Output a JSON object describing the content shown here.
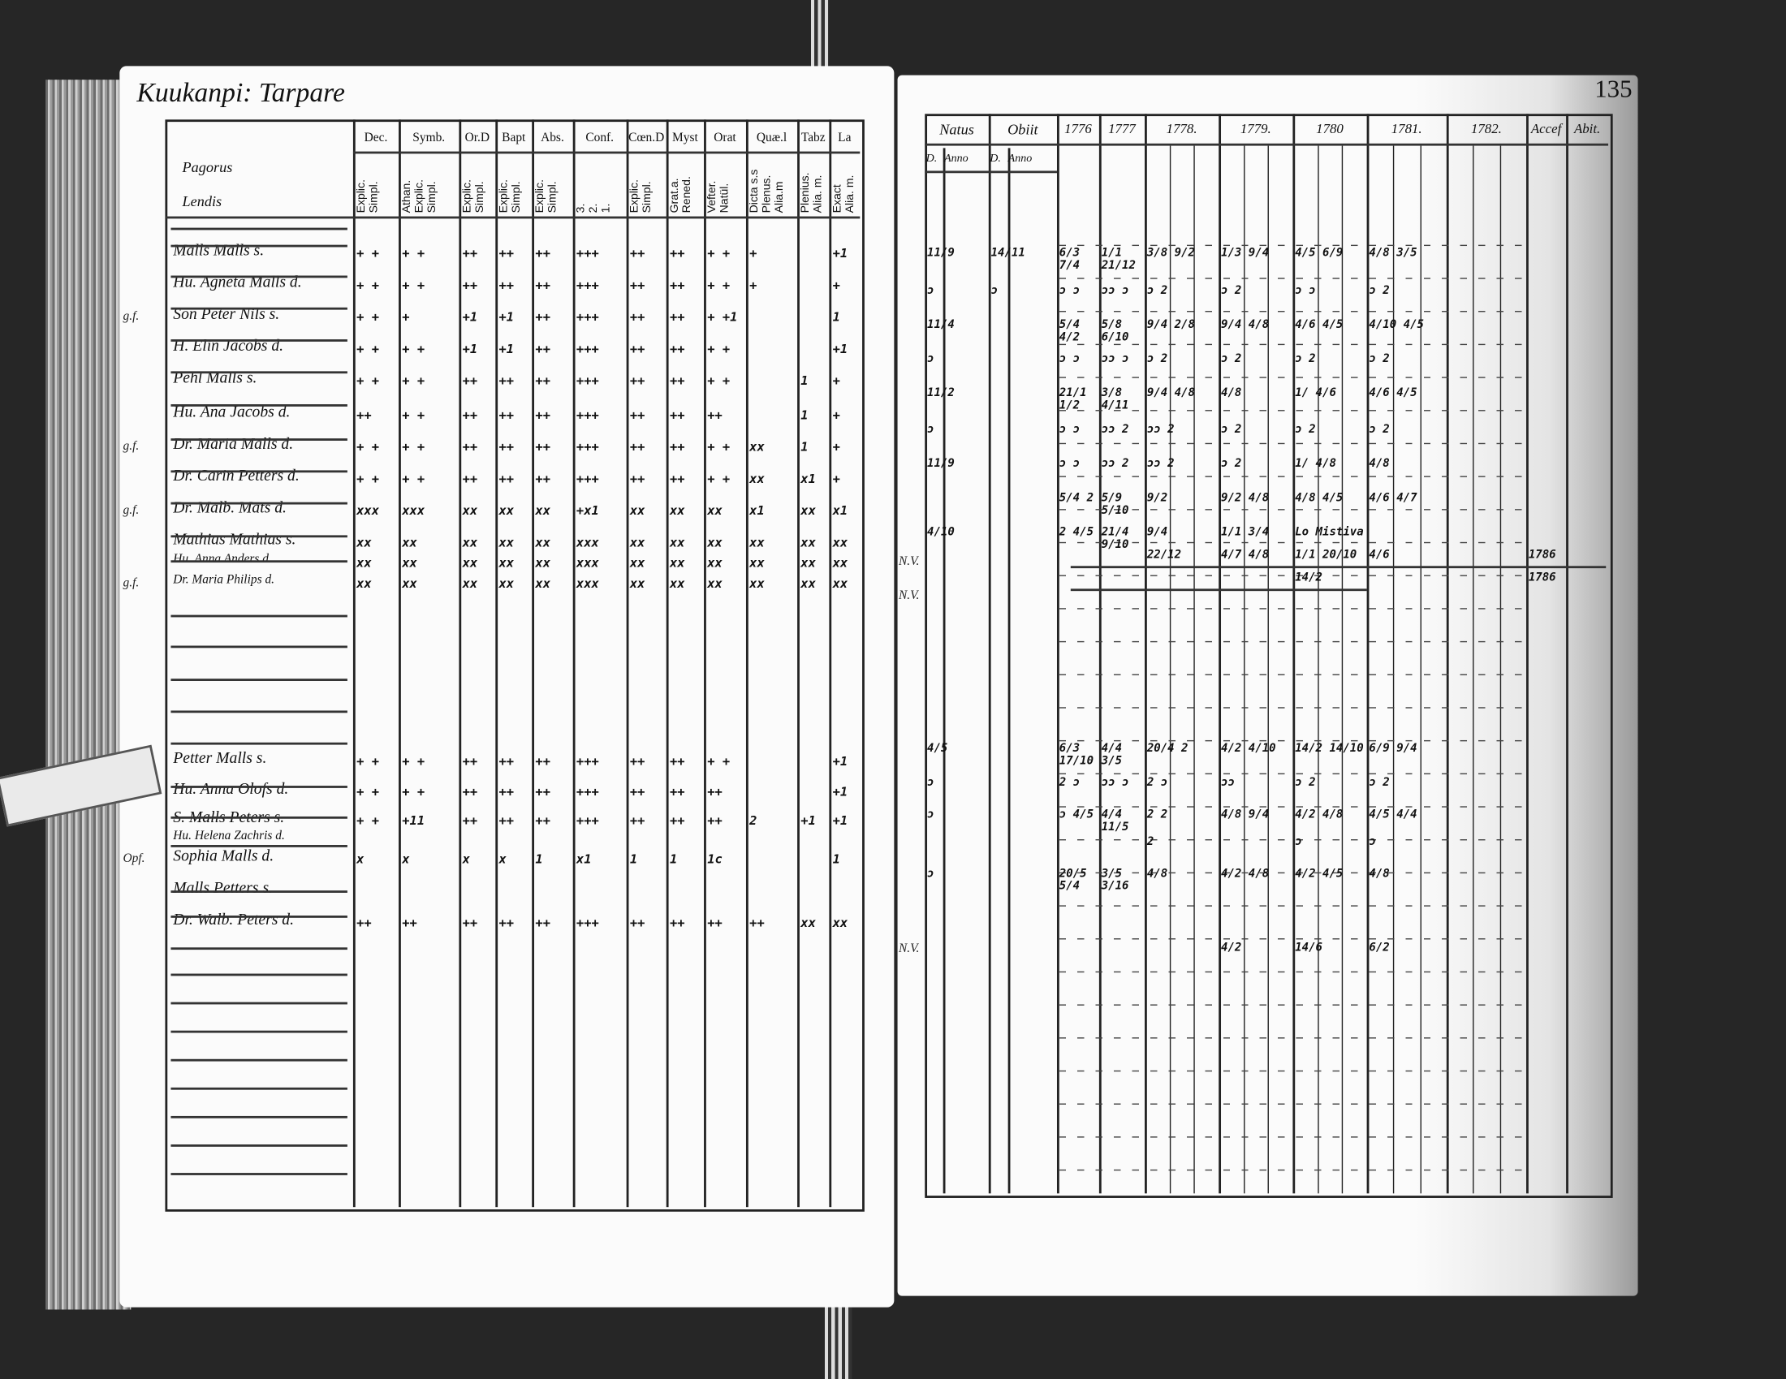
{
  "left_page": {
    "title": "Kuukanpi: Tarpare",
    "name_header": [
      "Pagorus",
      "Lendis"
    ],
    "columns": [
      {
        "head": "Dec.",
        "sub": "Explic.\nSimpl."
      },
      {
        "head": "Symb.",
        "sub": "Athan.\nExplic.\nSimpl."
      },
      {
        "head": "Or.D",
        "sub": "Explic.\nSimpl."
      },
      {
        "head": "Bapt",
        "sub": "Explic.\nSimpl."
      },
      {
        "head": "Abs.",
        "sub": "Explic.\nSimpl."
      },
      {
        "head": "Conf.",
        "sub": "3.\n2.\n1."
      },
      {
        "head": "Cœn.D",
        "sub": "Explic.\nSimpl."
      },
      {
        "head": "Myst",
        "sub": "Grat.a.\nRened."
      },
      {
        "head": "Orat",
        "sub": "Vefter.\nNatül."
      },
      {
        "head": "Quæ.l",
        "sub": "Dicta s.s\nPlenus.\nAlia.m"
      },
      {
        "head": "Tabz",
        "sub": "Plenius.\nAlia. m."
      },
      {
        "head": "La",
        "sub": "Exact\nAlia. m."
      }
    ],
    "rows": [
      {
        "name": "Malls Malls s.",
        "margin": "",
        "marks": [
          "+ +",
          "+ +",
          "++",
          "++",
          "++",
          "+++",
          "++",
          "++",
          "+ +",
          "+",
          "",
          "+1"
        ]
      },
      {
        "name": "Hu. Agneta Malls d.",
        "margin": "",
        "marks": [
          "+ +",
          "+ +",
          "++",
          "++",
          "++",
          "+++",
          "++",
          "++",
          "+ +",
          "+",
          "",
          "+"
        ]
      },
      {
        "name": "Son Peter Nils s.",
        "margin": "g.f.",
        "marks": [
          "+ +",
          "+",
          "+1",
          "+1",
          "++",
          "+++",
          "++",
          "++",
          "+ +1",
          "",
          "",
          "1"
        ]
      },
      {
        "name": "H. Elin Jacobs d.",
        "margin": "",
        "marks": [
          "+ +",
          "+ +",
          "+1",
          "+1",
          "++",
          "+++",
          "++",
          "++",
          "+ +",
          "",
          "",
          "+1"
        ]
      },
      {
        "name": "Pehl Malls s.",
        "margin": "",
        "marks": [
          "+ +",
          "+ +",
          "++",
          "++",
          "++",
          "+++",
          "++",
          "++",
          "+ +",
          "",
          "1",
          "+"
        ]
      },
      {
        "name": "Hu. Ana Jacobs d.",
        "margin": "",
        "marks": [
          "++",
          "+ +",
          "++",
          "++",
          "++",
          "+++",
          "++",
          "++",
          "++",
          "",
          "1",
          "+"
        ]
      },
      {
        "name": "Dr. Maria Malls d.",
        "margin": "g.f.",
        "marks": [
          "+ +",
          "+ +",
          "++",
          "++",
          "++",
          "+++",
          "++",
          "++",
          "+ +",
          "xx",
          "1",
          "+"
        ]
      },
      {
        "name": "Dr. Carin Petters d.",
        "margin": "",
        "marks": [
          "+ +",
          "+ +",
          "++",
          "++",
          "++",
          "+++",
          "++",
          "++",
          "+ +",
          "xx",
          "x1",
          "+"
        ]
      },
      {
        "name": "Dr. Malb. Mats d.",
        "margin": "g.f.",
        "marks": [
          "xxx",
          "xxx",
          "xx",
          "xx",
          "xx",
          "+x1",
          "xx",
          "xx",
          "xx",
          "x1",
          "xx",
          "x1"
        ]
      },
      {
        "name": "Mathias Mathias s.",
        "margin": "",
        "marks": [
          "xx",
          "xx",
          "xx",
          "xx",
          "xx",
          "xxx",
          "xx",
          "xx",
          "xx",
          "xx",
          "xx",
          "xx"
        ]
      },
      {
        "name": "Hu. Anna Anders d.",
        "margin": "",
        "marks": [
          "xx",
          "xx",
          "xx",
          "xx",
          "xx",
          "xxx",
          "xx",
          "xx",
          "xx",
          "xx",
          "xx",
          "xx"
        ]
      },
      {
        "name": "Dr. Maria Philips d.",
        "margin": "g.f.",
        "marks": [
          "xx",
          "xx",
          "xx",
          "xx",
          "xx",
          "xxx",
          "xx",
          "xx",
          "xx",
          "xx",
          "xx",
          "xx"
        ]
      },
      {
        "name": "Petter Malls s.",
        "margin": "",
        "marks": [
          "+ +",
          "+ +",
          "++",
          "++",
          "++",
          "+++",
          "++",
          "++",
          "+ +",
          "",
          "",
          "+1"
        ]
      },
      {
        "name": "Hu. Anna Olofs d.",
        "margin": "",
        "marks": [
          "+ +",
          "+ +",
          "++",
          "++",
          "++",
          "+++",
          "++",
          "++",
          "++",
          "",
          "",
          "+1"
        ]
      },
      {
        "name": "S. Malls Peters s.",
        "margin": "",
        "marks": [
          "+ +",
          "+11",
          "++",
          "++",
          "++",
          "+++",
          "++",
          "++",
          "++",
          "2",
          "+1",
          "+1"
        ]
      },
      {
        "name": "Hu. Helena Zachris d.",
        "margin": "",
        "marks": [
          "",
          "",
          "",
          "",
          "",
          "",
          "",
          "",
          "",
          "",
          "",
          ""
        ]
      },
      {
        "name": "Sophia Malls d.",
        "margin": "Opf.",
        "marks": [
          "x",
          "x",
          "x",
          "x",
          "1",
          "x1",
          "1",
          "1",
          "1c",
          "",
          "",
          "1"
        ]
      },
      {
        "name": "Malls Petters s.",
        "margin": "",
        "marks": [
          "",
          "",
          "",
          "",
          "",
          "",
          "",
          "",
          "",
          "",
          "",
          ""
        ]
      },
      {
        "name": "Dr. Walb. Peters d.",
        "margin": "",
        "marks": [
          "++",
          "++",
          "++",
          "++",
          "++",
          "+++",
          "++",
          "++",
          "++",
          "++",
          "xx",
          "xx"
        ]
      }
    ]
  },
  "right_page": {
    "page_number": "135",
    "columns": [
      {
        "head": "Natus",
        "subs": [
          "D.",
          "Anno"
        ]
      },
      {
        "head": "Obiit",
        "subs": [
          "D.",
          "Anno"
        ]
      },
      {
        "head": "1776",
        "subs": [
          ""
        ]
      },
      {
        "head": "1777",
        "subs": [
          ""
        ]
      },
      {
        "head": "1778.",
        "subs": [
          ""
        ]
      },
      {
        "head": "1779.",
        "subs": [
          ""
        ]
      },
      {
        "head": "1780",
        "subs": [
          ""
        ]
      },
      {
        "head": "1781.",
        "subs": [
          ""
        ]
      },
      {
        "head": "1782.",
        "subs": [
          ""
        ]
      },
      {
        "head": "Accef",
        "subs": [
          ""
        ]
      },
      {
        "head": "Abit.",
        "subs": [
          ""
        ]
      }
    ],
    "margin_notes": [
      "N.V.",
      "N.V.",
      "N.V."
    ],
    "accef_notes": [
      "1786",
      "1786"
    ],
    "rows": [
      {
        "cells": [
          "11/9",
          "14/11",
          "6/3 7/4",
          "1/1 21/12",
          "3/8 9/2",
          "1/3 9/4",
          "4/5 6/9",
          "4/8 3/5",
          "",
          "",
          ""
        ]
      },
      {
        "cells": [
          "ɔ",
          "ɔ",
          "ɔ ɔ",
          "ɔɔ ɔ",
          "ɔ 2",
          "ɔ 2",
          "ɔ ɔ",
          "ɔ 2",
          "",
          "",
          ""
        ]
      },
      {
        "cells": [
          "11/4",
          "",
          "5/4 4/2",
          "5/8 6/10",
          "9/4 2/8",
          "9/4 4/8",
          "4/6 4/5",
          "4/10 4/5",
          "",
          "",
          ""
        ]
      },
      {
        "cells": [
          "ɔ",
          "",
          "ɔ ɔ",
          "ɔɔ ɔ",
          "ɔ 2",
          "ɔ 2",
          "ɔ 2",
          "ɔ 2",
          "",
          "",
          ""
        ]
      },
      {
        "cells": [
          "11/2",
          "",
          "21/1 1/2",
          "3/8 4/11",
          "9/4 4/8",
          "4/8",
          "1/ 4/6",
          "4/6 4/5",
          "",
          "",
          ""
        ]
      },
      {
        "cells": [
          "ɔ",
          "",
          "ɔ ɔ",
          "ɔɔ 2",
          "ɔɔ 2",
          "ɔ 2",
          "ɔ 2",
          "ɔ 2",
          "",
          "",
          ""
        ]
      },
      {
        "cells": [
          "11/9",
          "",
          "ɔ ɔ",
          "ɔɔ 2",
          "ɔɔ 2",
          "ɔ 2",
          "1/ 4/8",
          "4/8",
          "",
          "",
          ""
        ]
      },
      {
        "cells": [
          "",
          "",
          "5/4 2",
          "5/9 5/10",
          "9/2",
          "9/2 4/8",
          "4/8 4/5",
          "4/6 4/7",
          "",
          "",
          ""
        ]
      },
      {
        "cells": [
          "4/10",
          "",
          "2 4/5",
          "21/4 9/10",
          "9/4",
          "1/1 3/4",
          "Lo Mistiva",
          "",
          "",
          "",
          ""
        ]
      },
      {
        "cells": [
          "",
          "",
          "",
          "",
          "22/12",
          "4/7 4/8",
          "1/1 20/10",
          "4/6",
          "",
          "1786",
          ""
        ]
      },
      {
        "cells": [
          "",
          "",
          "",
          "",
          "",
          "",
          "14/2",
          "",
          "",
          "1786",
          ""
        ]
      },
      {
        "cells": [
          "4/5",
          "",
          "6/3 17/10",
          "4/4 3/5",
          "20/4 2",
          "4/2 4/10",
          "14/2 14/10",
          "6/9 9/4",
          "",
          "",
          ""
        ]
      },
      {
        "cells": [
          "ɔ",
          "",
          "2 ɔ",
          "ɔɔ ɔ",
          "2 ɔ",
          "ɔɔ",
          "ɔ 2",
          "ɔ 2",
          "",
          "",
          ""
        ]
      },
      {
        "cells": [
          "ɔ",
          "",
          "ɔ 4/5",
          "4/4 11/5",
          "2 2",
          "4/8 9/4",
          "4/2 4/8",
          "4/5 4/4",
          "",
          "",
          ""
        ]
      },
      {
        "cells": [
          "",
          "",
          "",
          "",
          "2",
          "",
          "ɔ",
          "ɔ",
          "",
          "",
          ""
        ]
      },
      {
        "cells": [
          "ɔ",
          "",
          "20/5 5/4",
          "3/5 3/16",
          "4/8",
          "4/2 4/8",
          "4/2 4/5",
          "4/8",
          "",
          "",
          ""
        ]
      },
      {
        "cells": [
          "",
          "",
          "",
          "",
          "",
          "4/2",
          "14/6",
          "6/2",
          "",
          "",
          ""
        ]
      }
    ]
  }
}
